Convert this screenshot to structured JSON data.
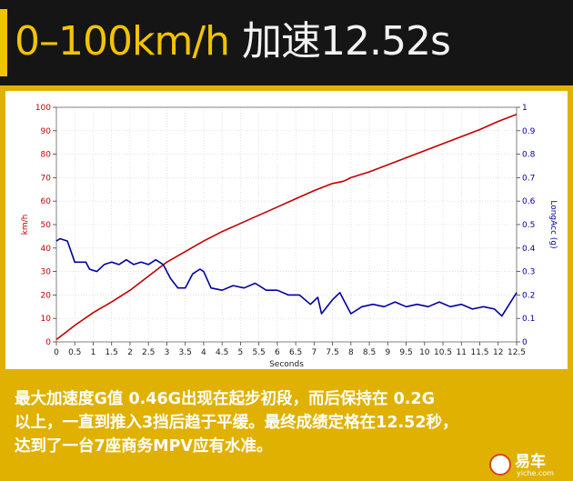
{
  "header": {
    "title_main": "0–100km/h",
    "title_sub": "加速12.52s"
  },
  "colors": {
    "accent": "#f2c300",
    "speed_line": "#c00000",
    "g_line": "#0000a0"
  },
  "chart_data": {
    "type": "line",
    "xlabel": "Seconds",
    "ylabel": "km/h",
    "y2label": "LongAcc (g)",
    "xlim": [
      0,
      12.5
    ],
    "ylim": [
      0,
      100
    ],
    "y2lim": [
      0,
      1
    ],
    "x_ticks": [
      "0",
      "0.5",
      "1",
      "1.5",
      "2",
      "2.5",
      "3",
      "3.5",
      "4",
      "4.5",
      "5",
      "5.5",
      "6",
      "6.5",
      "7",
      "7.5",
      "8",
      "8.5",
      "9",
      "9.5",
      "10",
      "10.5",
      "11",
      "11.5",
      "12",
      "12.5"
    ],
    "y_ticks": [
      "0",
      "10",
      "20",
      "30",
      "40",
      "50",
      "60",
      "70",
      "80",
      "90",
      "100"
    ],
    "y2_ticks": [
      "0",
      "0.1",
      "0.2",
      "0.3",
      "0.4",
      "0.5",
      "0.6",
      "0.7",
      "0.8",
      "0.9",
      "1"
    ],
    "grid": true,
    "series": [
      {
        "axis": "left",
        "color": "#c00000",
        "points": [
          [
            0,
            1
          ],
          [
            0.25,
            4
          ],
          [
            0.5,
            7
          ],
          [
            1,
            12.5
          ],
          [
            1.5,
            17
          ],
          [
            2,
            22
          ],
          [
            2.5,
            28
          ],
          [
            3,
            34
          ],
          [
            3.5,
            38.5
          ],
          [
            4,
            43
          ],
          [
            4.5,
            47
          ],
          [
            5,
            50.5
          ],
          [
            5.5,
            54
          ],
          [
            6,
            57.5
          ],
          [
            6.5,
            61
          ],
          [
            7,
            64.5
          ],
          [
            7.5,
            67.5
          ],
          [
            7.8,
            68.5
          ],
          [
            8,
            70
          ],
          [
            8.5,
            72.5
          ],
          [
            9,
            75.5
          ],
          [
            9.5,
            78.5
          ],
          [
            10,
            81.5
          ],
          [
            10.5,
            84.5
          ],
          [
            11,
            87.5
          ],
          [
            11.5,
            90.5
          ],
          [
            12,
            94
          ],
          [
            12.5,
            97
          ]
        ]
      },
      {
        "axis": "right",
        "color": "#0000a0",
        "points": [
          [
            0,
            0.43
          ],
          [
            0.1,
            0.44
          ],
          [
            0.3,
            0.43
          ],
          [
            0.5,
            0.34
          ],
          [
            0.8,
            0.34
          ],
          [
            0.9,
            0.31
          ],
          [
            1.1,
            0.3
          ],
          [
            1.3,
            0.33
          ],
          [
            1.5,
            0.34
          ],
          [
            1.7,
            0.33
          ],
          [
            1.9,
            0.35
          ],
          [
            2.1,
            0.33
          ],
          [
            2.3,
            0.34
          ],
          [
            2.5,
            0.33
          ],
          [
            2.7,
            0.35
          ],
          [
            2.9,
            0.33
          ],
          [
            3.1,
            0.27
          ],
          [
            3.3,
            0.23
          ],
          [
            3.5,
            0.23
          ],
          [
            3.7,
            0.29
          ],
          [
            3.9,
            0.31
          ],
          [
            4.0,
            0.3
          ],
          [
            4.2,
            0.23
          ],
          [
            4.5,
            0.22
          ],
          [
            4.8,
            0.24
          ],
          [
            5.1,
            0.23
          ],
          [
            5.4,
            0.25
          ],
          [
            5.7,
            0.22
          ],
          [
            6.0,
            0.22
          ],
          [
            6.3,
            0.2
          ],
          [
            6.6,
            0.2
          ],
          [
            6.9,
            0.16
          ],
          [
            7.1,
            0.19
          ],
          [
            7.2,
            0.12
          ],
          [
            7.5,
            0.18
          ],
          [
            7.7,
            0.21
          ],
          [
            7.8,
            0.18
          ],
          [
            8.0,
            0.12
          ],
          [
            8.3,
            0.15
          ],
          [
            8.6,
            0.16
          ],
          [
            8.9,
            0.15
          ],
          [
            9.2,
            0.17
          ],
          [
            9.5,
            0.15
          ],
          [
            9.8,
            0.16
          ],
          [
            10.1,
            0.15
          ],
          [
            10.4,
            0.17
          ],
          [
            10.7,
            0.15
          ],
          [
            11.0,
            0.16
          ],
          [
            11.3,
            0.14
          ],
          [
            11.6,
            0.15
          ],
          [
            11.9,
            0.14
          ],
          [
            12.1,
            0.11
          ],
          [
            12.3,
            0.16
          ],
          [
            12.5,
            0.21
          ]
        ]
      }
    ]
  },
  "caption": {
    "line1": "最大加速度G值 0.46G出现在起步初段，而后保持在 0.2G",
    "line2": "以上，一直到推入3挡后趋于平缓。最终成绩定格在12.52秒，",
    "line3": "达到了一台7座商务MPV应有水准。"
  },
  "watermark": {
    "brand": "易车",
    "domain": "yiche.com"
  }
}
